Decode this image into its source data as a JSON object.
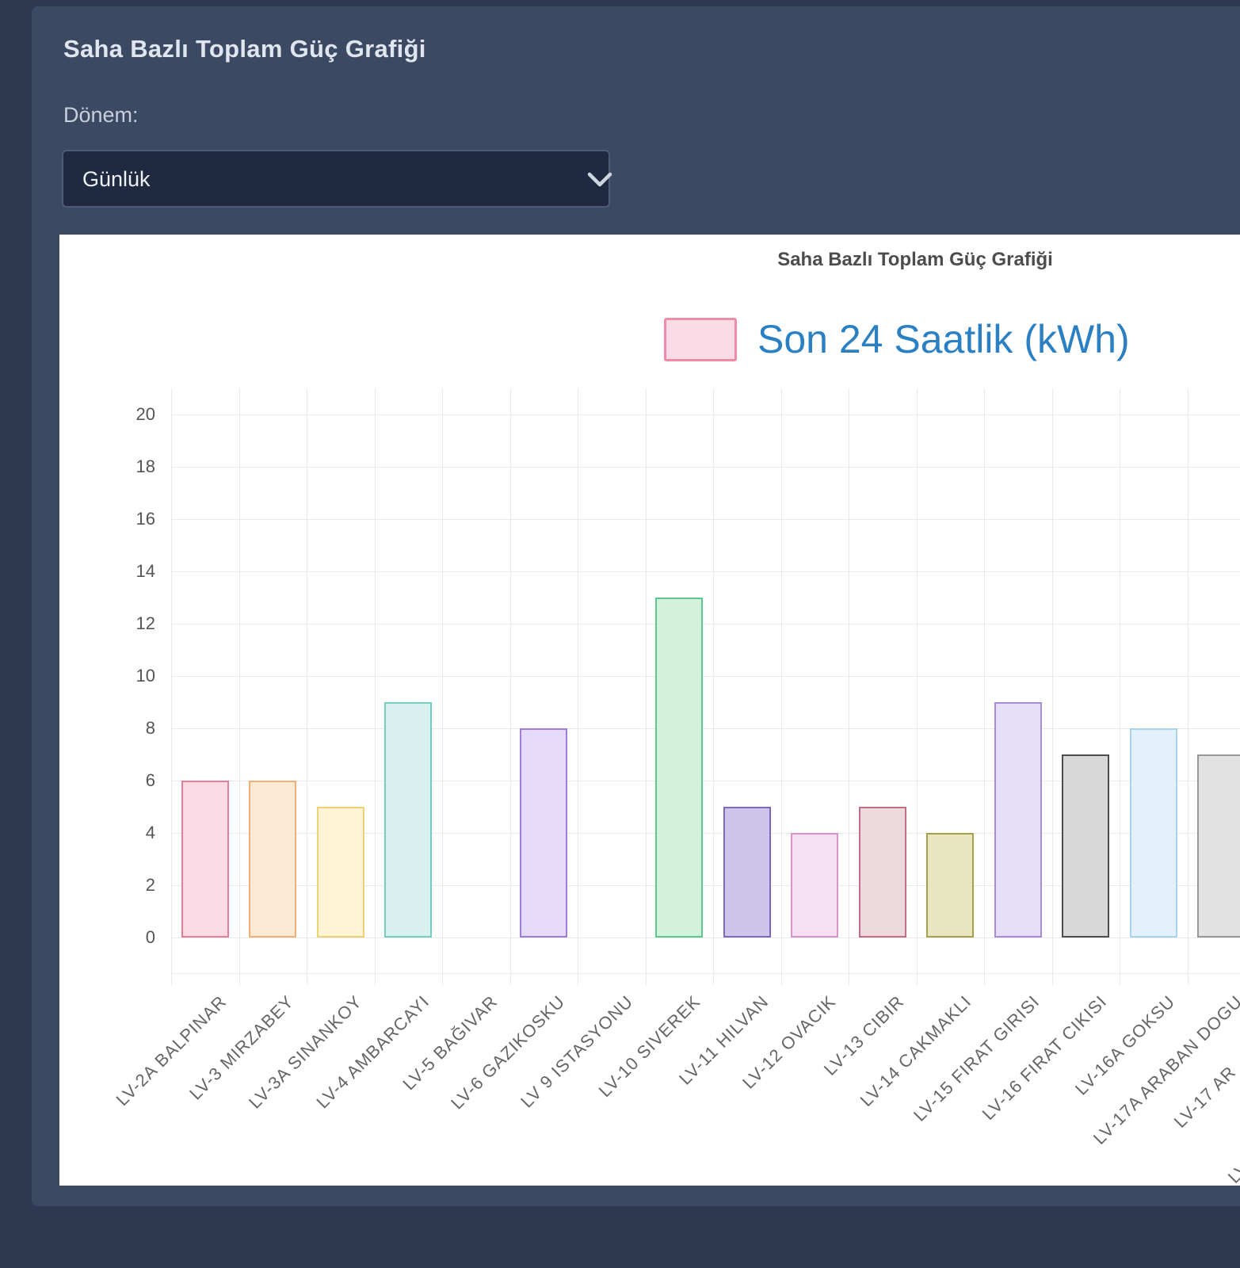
{
  "card": {
    "title": "Saha Bazlı Toplam Güç Grafiği",
    "period_label": "Dönem:",
    "period_select": {
      "value": "Günlük"
    }
  },
  "chart": {
    "inner_title": "Saha Bazlı Toplam Güç Grafiği",
    "legend": {
      "label": "Son 24 Saatlik (kWh)",
      "swatch_fill": "#fbdce6",
      "swatch_border": "#ee8ba6",
      "text_color": "#2b80c4"
    }
  },
  "chart_data": {
    "type": "bar",
    "title": "Saha Bazlı Toplam Güç Grafiği",
    "legend_label": "Son 24 Saatlik (kWh)",
    "xlabel": "",
    "ylabel": "",
    "ylim": [
      0,
      20
    ],
    "ytick_step": 2,
    "grid": true,
    "legend_position": "top",
    "categories": [
      "LV-2A BALPINAR",
      "LV-3 MIRZABEY",
      "LV-3A SINANKOY",
      "LV-4 AMBARCAYI",
      "LV-5 BAĞIVAR",
      "LV-6 GAZIKOSKU",
      "LV 9 ISTASYONU",
      "LV-10 SIVEREK",
      "LV-11 HILVAN",
      "LV-12 OVACIK",
      "LV-13 CIBIR",
      "LV-14 CAKMAKLI",
      "LV-15 FIRAT GIRISI",
      "LV-16 FIRAT CIKISI",
      "LV-16A GOKSU",
      "LV-17A ARABAN DOGU",
      "LV-17 AR",
      "LV"
    ],
    "values": [
      6,
      6,
      5,
      9,
      0,
      8,
      0,
      13,
      5,
      4,
      5,
      4,
      9,
      7,
      8,
      7,
      null,
      null
    ],
    "bar_fill_colors": [
      "#fbdce6",
      "#fcead6",
      "#fdf4d6",
      "#d8f1ee",
      "#ffffff",
      "#e5dbf8",
      "#ffffff",
      "#d4f1dd",
      "#cfc5eb",
      "#f7dff2",
      "#eed9de",
      "#e8e5c1",
      "#e6ddf9",
      "#d8d8d8",
      "#e2f1fb",
      "#e2e2e2"
    ],
    "bar_border_colors": [
      "#e97c98",
      "#f1af74",
      "#edd272",
      "#74cfc2",
      "#ffffff",
      "#9d7cda",
      "#ffffff",
      "#5bc98c",
      "#7c69bd",
      "#d793cb",
      "#c06e85",
      "#a5a04a",
      "#a78ad8",
      "#4c4c4c",
      "#abd3ee",
      "#979797"
    ],
    "partial_label_shifts": {
      "16": [
        -94,
        89
      ],
      "17": [
        -162,
        210
      ]
    }
  }
}
